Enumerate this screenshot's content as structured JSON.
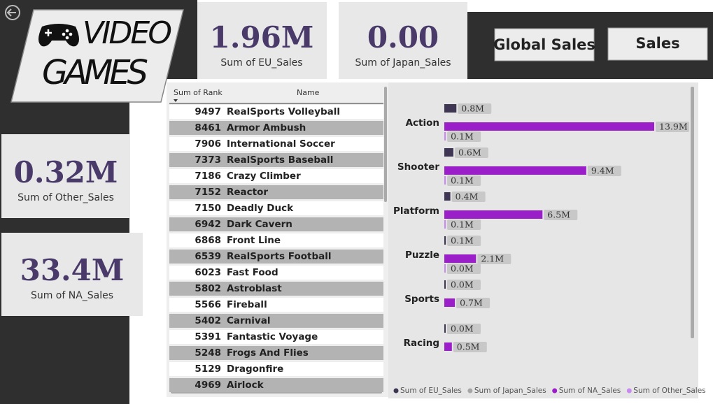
{
  "logo": {
    "lines": [
      "VIDEO",
      "GAMES"
    ]
  },
  "kpis": [
    {
      "value": "1.96M",
      "label": "Sum of EU_Sales"
    },
    {
      "value": "0.00",
      "label": "Sum of Japan_Sales"
    },
    {
      "value": "0.32M",
      "label": "Sum of Other_Sales"
    },
    {
      "value": "33.4M",
      "label": "Sum of NA_Sales"
    }
  ],
  "buttons": [
    "Global Sales",
    "Sales"
  ],
  "table": {
    "columns": [
      "Sum of Rank",
      "Name"
    ],
    "rows": [
      [
        "9497",
        "RealSports Volleyball"
      ],
      [
        "8461",
        "Armor Ambush"
      ],
      [
        "7906",
        "International Soccer"
      ],
      [
        "7373",
        "RealSports Baseball"
      ],
      [
        "7186",
        "Crazy Climber"
      ],
      [
        "7152",
        "Reactor"
      ],
      [
        "7150",
        "Deadly Duck"
      ],
      [
        "6942",
        "Dark Cavern"
      ],
      [
        "6868",
        "Front Line"
      ],
      [
        "6539",
        "RealSports Football"
      ],
      [
        "6023",
        "Fast Food"
      ],
      [
        "5802",
        "Astroblast"
      ],
      [
        "5566",
        "Fireball"
      ],
      [
        "5402",
        "Carnival"
      ],
      [
        "5391",
        "Fantastic Voyage"
      ],
      [
        "5248",
        "Frogs And Flies"
      ],
      [
        "5129",
        "Dragonfire"
      ],
      [
        "4969",
        "Airlock"
      ]
    ]
  },
  "chart_data": {
    "type": "bar",
    "orientation": "horizontal",
    "categories": [
      "Action",
      "Shooter",
      "Platform",
      "Puzzle",
      "Sports",
      "Racing"
    ],
    "series": [
      {
        "name": "Sum of EU_Sales",
        "color": "#3f3654",
        "values": [
          0.8,
          0.6,
          0.4,
          0.1,
          0.0,
          0.0
        ],
        "value_labels": [
          "0.8M",
          "0.6M",
          "0.4M",
          "0.1M",
          "0.0M",
          "0.0M"
        ]
      },
      {
        "name": "Sum of Japan_Sales",
        "color": "#a6a6a6",
        "values": [
          null,
          null,
          null,
          null,
          null,
          null
        ],
        "value_labels": [
          null,
          null,
          null,
          null,
          null,
          null
        ]
      },
      {
        "name": "Sum of NA_Sales",
        "color": "#9b1fc9",
        "values": [
          13.9,
          9.4,
          6.5,
          2.1,
          0.7,
          0.5
        ],
        "value_labels": [
          "13.9M",
          "9.4M",
          "6.5M",
          "2.1M",
          "0.7M",
          "0.5M"
        ]
      },
      {
        "name": "Sum of Other_Sales",
        "color": "#c98af0",
        "values": [
          0.1,
          0.1,
          0.1,
          0.0,
          null,
          null
        ],
        "value_labels": [
          "0.1M",
          "0.1M",
          "0.1M",
          "0.0M",
          null,
          null
        ]
      }
    ],
    "legend": "bottom"
  }
}
